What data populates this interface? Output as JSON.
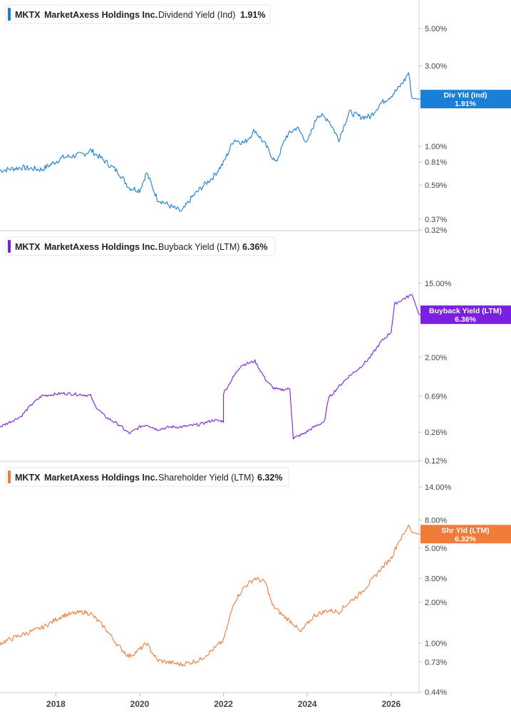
{
  "chart_data": [
    {
      "type": "line",
      "ticker": "MKTX",
      "company": "MarketAxess Holdings Inc.",
      "metric": "Dividend Yield (Ind)",
      "last_value": "1.91%",
      "tag_label": "Div Yld (Ind)",
      "color": "#1a7fd6",
      "y_scale": "log",
      "ylim": [
        0.32,
        6.2
      ],
      "y_ticks": [
        {
          "v": 5.0,
          "label": "5.00%"
        },
        {
          "v": 3.0,
          "label": "3.00%"
        },
        {
          "v": 1.0,
          "label": "1.00%"
        },
        {
          "v": 0.81,
          "label": "0.81%"
        },
        {
          "v": 0.59,
          "label": "0.59%"
        },
        {
          "v": 0.37,
          "label": "0.37%"
        },
        {
          "v": 0.32,
          "label": "0.32%"
        }
      ],
      "x": [
        "2016-09",
        "2017-03",
        "2017-09",
        "2018-03",
        "2018-09",
        "2018-11",
        "2019-03",
        "2019-07",
        "2019-10",
        "2020-01",
        "2020-03",
        "2020-06",
        "2020-10",
        "2021-01",
        "2021-04",
        "2021-07",
        "2021-10",
        "2022-01",
        "2022-04",
        "2022-07",
        "2022-10",
        "2023-01",
        "2023-04",
        "2023-07",
        "2023-10",
        "2024-01",
        "2024-04",
        "2024-07",
        "2024-10",
        "2025-01",
        "2025-04",
        "2025-07",
        "2025-10",
        "2026-01",
        "2026-03",
        "2026-05",
        "2026-06",
        "2026-07",
        "2026-09"
      ],
      "values": [
        0.72,
        0.75,
        0.73,
        0.86,
        0.9,
        0.95,
        0.82,
        0.7,
        0.57,
        0.55,
        0.7,
        0.49,
        0.44,
        0.41,
        0.5,
        0.58,
        0.66,
        0.8,
        1.1,
        1.05,
        1.25,
        1.02,
        0.8,
        1.15,
        1.3,
        1.05,
        1.55,
        1.45,
        1.1,
        1.6,
        1.5,
        1.5,
        1.8,
        2.0,
        2.2,
        2.5,
        2.75,
        1.93,
        1.91
      ],
      "series": [
        {
          "name": "Dividend Yield (Ind)"
        }
      ]
    },
    {
      "type": "line",
      "ticker": "MKTX",
      "company": "MarketAxess Holdings Inc.",
      "metric": "Buyback Yield (LTM)",
      "last_value": "6.36%",
      "tag_label": "Buyback Yield (LTM)",
      "color": "#7b1fe3",
      "y_scale": "log",
      "ylim": [
        0.12,
        20
      ],
      "y_ticks": [
        {
          "v": 15.0,
          "label": "15.00%"
        },
        {
          "v": 2.0,
          "label": "2.00%"
        },
        {
          "v": 0.69,
          "label": "0.69%"
        },
        {
          "v": 0.26,
          "label": "0.26%"
        },
        {
          "v": 0.12,
          "label": "0.12%"
        }
      ],
      "x": [
        "2016-09",
        "2017-03",
        "2017-06",
        "2017-09",
        "2018-03",
        "2018-09",
        "2018-11",
        "2018-12",
        "2019-03",
        "2019-07",
        "2019-10",
        "2020-01",
        "2020-03",
        "2020-06",
        "2020-10",
        "2021-01",
        "2021-06",
        "2021-10",
        "2022-01",
        "2022-01",
        "2022-04",
        "2022-06",
        "2022-10",
        "2023-01",
        "2023-03",
        "2023-05",
        "2023-08",
        "2023-09",
        "2023-12",
        "2024-03",
        "2024-06",
        "2024-07",
        "2024-10",
        "2025-01",
        "2025-04",
        "2025-07",
        "2025-10",
        "2026-01",
        "2026-02",
        "2026-05",
        "2026-07",
        "2026-09"
      ],
      "values": [
        0.3,
        0.4,
        0.55,
        0.7,
        0.75,
        0.72,
        0.7,
        0.55,
        0.4,
        0.32,
        0.25,
        0.3,
        0.32,
        0.28,
        0.3,
        0.3,
        0.32,
        0.36,
        0.35,
        0.75,
        1.2,
        1.6,
        1.8,
        1.1,
        0.88,
        0.82,
        0.85,
        0.22,
        0.25,
        0.3,
        0.35,
        0.65,
        0.9,
        1.2,
        1.5,
        2.0,
        3.0,
        4.0,
        8.5,
        10.0,
        11.0,
        6.36
      ],
      "series": [
        {
          "name": "Buyback Yield (LTM)"
        }
      ]
    },
    {
      "type": "line",
      "ticker": "MKTX",
      "company": "MarketAxess Holdings Inc.",
      "metric": "Shareholder Yield (LTM)",
      "last_value": "6.32%",
      "tag_label": "Shr Yld (LTM)",
      "color": "#f07c3a",
      "y_scale": "log",
      "ylim": [
        0.44,
        16
      ],
      "y_ticks": [
        {
          "v": 14.0,
          "label": "14.00%"
        },
        {
          "v": 8.0,
          "label": "8.00%"
        },
        {
          "v": 5.0,
          "label": "5.00%"
        },
        {
          "v": 3.0,
          "label": "3.00%"
        },
        {
          "v": 2.0,
          "label": "2.00%"
        },
        {
          "v": 1.0,
          "label": "1.00%"
        },
        {
          "v": 0.73,
          "label": "0.73%"
        },
        {
          "v": 0.44,
          "label": "0.44%"
        }
      ],
      "x": [
        "2016-09",
        "2017-03",
        "2017-09",
        "2018-03",
        "2018-09",
        "2018-11",
        "2019-03",
        "2019-07",
        "2019-10",
        "2020-01",
        "2020-03",
        "2020-06",
        "2020-10",
        "2021-01",
        "2021-06",
        "2021-10",
        "2022-01",
        "2022-04",
        "2022-07",
        "2022-10",
        "2023-01",
        "2023-03",
        "2023-06",
        "2023-09",
        "2023-11",
        "2024-03",
        "2024-07",
        "2024-10",
        "2025-01",
        "2025-04",
        "2025-07",
        "2025-10",
        "2026-01",
        "2026-03",
        "2026-05",
        "2026-06",
        "2026-07",
        "2026-09"
      ],
      "values": [
        1.0,
        1.15,
        1.3,
        1.6,
        1.7,
        1.65,
        1.3,
        0.95,
        0.8,
        0.9,
        1.0,
        0.75,
        0.72,
        0.7,
        0.75,
        0.9,
        1.05,
        2.0,
        2.6,
        3.0,
        2.8,
        1.9,
        1.6,
        1.4,
        1.2,
        1.6,
        1.75,
        1.7,
        2.0,
        2.3,
        2.8,
        3.5,
        4.2,
        5.5,
        6.5,
        7.5,
        6.5,
        6.32
      ],
      "series": [
        {
          "name": "Shareholder Yield (LTM)"
        }
      ]
    }
  ],
  "x_axis": {
    "range": [
      "2016-09",
      "2026-09"
    ],
    "ticks": [
      {
        "d": "2018-01",
        "label": "2018"
      },
      {
        "d": "2020-01",
        "label": "2020"
      },
      {
        "d": "2022-01",
        "label": "2022"
      },
      {
        "d": "2024-01",
        "label": "2024"
      },
      {
        "d": "2026-01",
        "label": "2026"
      }
    ]
  },
  "colors": {
    "axis": "#d0d0d0",
    "tick_text": "#444444",
    "header_text": "#222222"
  }
}
